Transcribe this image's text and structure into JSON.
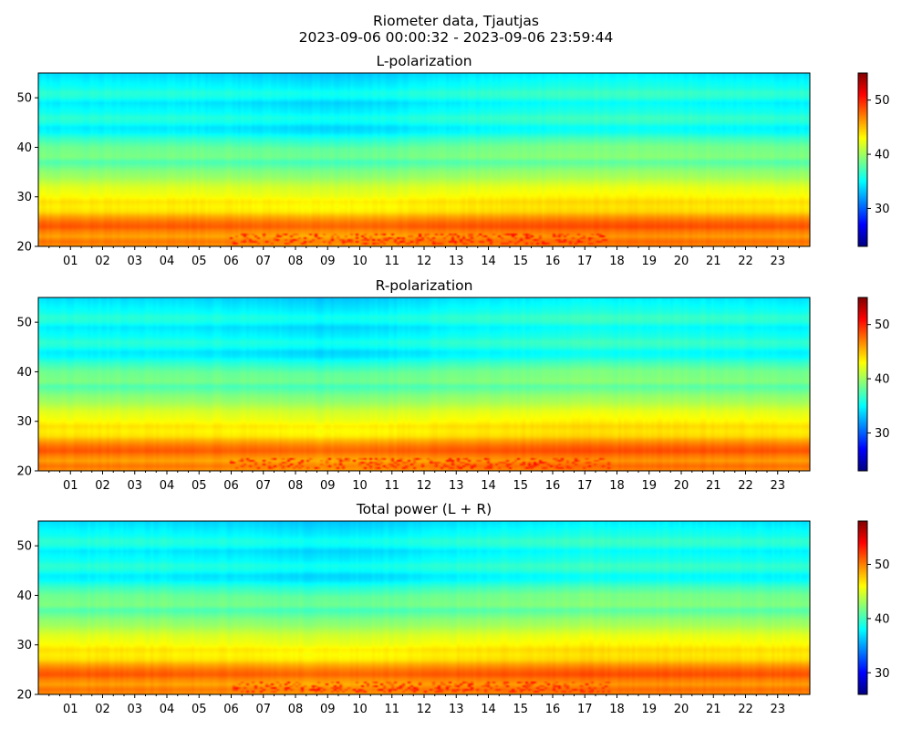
{
  "figure": {
    "title_line1": "Riometer data, Tjautjas",
    "title_line2": "2023-09-06 00:00:32 - 2023-09-06 23:59:44"
  },
  "chart_data": [
    {
      "type": "heatmap",
      "title": "L-polarization",
      "x_unit": "hour of day",
      "xlim": [
        0,
        24
      ],
      "xticks": [
        "01",
        "02",
        "03",
        "04",
        "05",
        "06",
        "07",
        "08",
        "09",
        "10",
        "11",
        "12",
        "13",
        "14",
        "15",
        "16",
        "17",
        "18",
        "19",
        "20",
        "21",
        "22",
        "23"
      ],
      "ylim": [
        20,
        55
      ],
      "yticks": [
        20,
        30,
        40,
        50
      ],
      "colormap": "jet",
      "colorbar": {
        "range": [
          23,
          55
        ],
        "ticks": [
          30,
          40,
          50
        ]
      },
      "y_profile": [
        {
          "y": 20,
          "v": 46.5
        },
        {
          "y": 21,
          "v": 47.5
        },
        {
          "y": 22,
          "v": 46.0
        },
        {
          "y": 23,
          "v": 47.0
        },
        {
          "y": 24,
          "v": 48.5
        },
        {
          "y": 25,
          "v": 47.5
        },
        {
          "y": 26,
          "v": 46.0
        },
        {
          "y": 27,
          "v": 44.0
        },
        {
          "y": 28,
          "v": 43.5
        },
        {
          "y": 29,
          "v": 44.0
        },
        {
          "y": 30,
          "v": 43.0
        },
        {
          "y": 32,
          "v": 42.0
        },
        {
          "y": 34,
          "v": 40.0
        },
        {
          "y": 35,
          "v": 39.5
        },
        {
          "y": 36,
          "v": 38.5
        },
        {
          "y": 37,
          "v": 37.5
        },
        {
          "y": 38,
          "v": 39.0
        },
        {
          "y": 40,
          "v": 38.5
        },
        {
          "y": 41,
          "v": 37.5
        },
        {
          "y": 42,
          "v": 36.5
        },
        {
          "y": 43,
          "v": 35.0
        },
        {
          "y": 44,
          "v": 34.5
        },
        {
          "y": 45,
          "v": 36.0
        },
        {
          "y": 46,
          "v": 36.5
        },
        {
          "y": 47,
          "v": 35.5
        },
        {
          "y": 48,
          "v": 35.0
        },
        {
          "y": 49,
          "v": 34.5
        },
        {
          "y": 50,
          "v": 36.0
        },
        {
          "y": 51,
          "v": 36.5
        },
        {
          "y": 52,
          "v": 35.5
        },
        {
          "y": 53,
          "v": 35.0
        },
        {
          "y": 54,
          "v": 34.5
        },
        {
          "y": 55,
          "v": 34.0
        }
      ],
      "hour_modulation": [
        {
          "h": 0,
          "d": 0.0
        },
        {
          "h": 4,
          "d": -0.2
        },
        {
          "h": 7,
          "d": -0.6
        },
        {
          "h": 9,
          "d": -1.0
        },
        {
          "h": 11,
          "d": -0.6
        },
        {
          "h": 13,
          "d": 0.0
        },
        {
          "h": 15,
          "d": 0.3
        },
        {
          "h": 17,
          "d": 0.6
        },
        {
          "h": 19,
          "d": 0.5
        },
        {
          "h": 21,
          "d": 0.3
        },
        {
          "h": 24,
          "d": 0.0
        }
      ],
      "disturbance": {
        "y_range": [
          20.5,
          22.5
        ],
        "hours": [
          6.0,
          17.8
        ],
        "peak": 51
      }
    },
    {
      "type": "heatmap",
      "title": "R-polarization",
      "x_unit": "hour of day",
      "xlim": [
        0,
        24
      ],
      "xticks": [
        "01",
        "02",
        "03",
        "04",
        "05",
        "06",
        "07",
        "08",
        "09",
        "10",
        "11",
        "12",
        "13",
        "14",
        "15",
        "16",
        "17",
        "18",
        "19",
        "20",
        "21",
        "22",
        "23"
      ],
      "ylim": [
        20,
        55
      ],
      "yticks": [
        20,
        30,
        40,
        50
      ],
      "colormap": "jet",
      "colorbar": {
        "range": [
          23,
          55
        ],
        "ticks": [
          30,
          40,
          50
        ]
      },
      "y_profile": [
        {
          "y": 20,
          "v": 46.5
        },
        {
          "y": 21,
          "v": 47.5
        },
        {
          "y": 22,
          "v": 46.0
        },
        {
          "y": 23,
          "v": 47.0
        },
        {
          "y": 24,
          "v": 48.5
        },
        {
          "y": 25,
          "v": 47.5
        },
        {
          "y": 26,
          "v": 46.0
        },
        {
          "y": 27,
          "v": 44.0
        },
        {
          "y": 28,
          "v": 43.5
        },
        {
          "y": 29,
          "v": 44.0
        },
        {
          "y": 30,
          "v": 43.0
        },
        {
          "y": 32,
          "v": 42.0
        },
        {
          "y": 34,
          "v": 40.0
        },
        {
          "y": 35,
          "v": 39.5
        },
        {
          "y": 36,
          "v": 38.5
        },
        {
          "y": 37,
          "v": 37.5
        },
        {
          "y": 38,
          "v": 39.0
        },
        {
          "y": 40,
          "v": 38.5
        },
        {
          "y": 41,
          "v": 37.5
        },
        {
          "y": 42,
          "v": 36.5
        },
        {
          "y": 43,
          "v": 35.0
        },
        {
          "y": 44,
          "v": 34.5
        },
        {
          "y": 45,
          "v": 36.0
        },
        {
          "y": 46,
          "v": 36.5
        },
        {
          "y": 47,
          "v": 35.5
        },
        {
          "y": 48,
          "v": 35.0
        },
        {
          "y": 49,
          "v": 34.5
        },
        {
          "y": 50,
          "v": 36.0
        },
        {
          "y": 51,
          "v": 36.5
        },
        {
          "y": 52,
          "v": 35.5
        },
        {
          "y": 53,
          "v": 35.0
        },
        {
          "y": 54,
          "v": 34.5
        },
        {
          "y": 55,
          "v": 34.0
        }
      ],
      "hour_modulation": [
        {
          "h": 0,
          "d": 0.0
        },
        {
          "h": 4,
          "d": -0.2
        },
        {
          "h": 7,
          "d": -0.6
        },
        {
          "h": 9,
          "d": -1.0
        },
        {
          "h": 11,
          "d": -0.6
        },
        {
          "h": 13,
          "d": 0.0
        },
        {
          "h": 15,
          "d": 0.3
        },
        {
          "h": 17,
          "d": 0.6
        },
        {
          "h": 19,
          "d": 0.5
        },
        {
          "h": 21,
          "d": 0.3
        },
        {
          "h": 24,
          "d": 0.0
        }
      ],
      "disturbance": {
        "y_range": [
          20.5,
          22.5
        ],
        "hours": [
          6.0,
          17.8
        ],
        "peak": 51
      }
    },
    {
      "type": "heatmap",
      "title": "Total power (L + R)",
      "x_unit": "hour of day",
      "xlim": [
        0,
        24
      ],
      "xticks": [
        "01",
        "02",
        "03",
        "04",
        "05",
        "06",
        "07",
        "08",
        "09",
        "10",
        "11",
        "12",
        "13",
        "14",
        "15",
        "16",
        "17",
        "18",
        "19",
        "20",
        "21",
        "22",
        "23"
      ],
      "ylim": [
        20,
        55
      ],
      "yticks": [
        20,
        30,
        40,
        50
      ],
      "colormap": "jet",
      "colorbar": {
        "range": [
          26,
          58
        ],
        "ticks": [
          30,
          40,
          50
        ]
      },
      "y_profile": [
        {
          "y": 20,
          "v": 49.5
        },
        {
          "y": 21,
          "v": 50.5
        },
        {
          "y": 22,
          "v": 49.0
        },
        {
          "y": 23,
          "v": 50.0
        },
        {
          "y": 24,
          "v": 51.5
        },
        {
          "y": 25,
          "v": 50.5
        },
        {
          "y": 26,
          "v": 49.0
        },
        {
          "y": 27,
          "v": 47.0
        },
        {
          "y": 28,
          "v": 46.5
        },
        {
          "y": 29,
          "v": 47.0
        },
        {
          "y": 30,
          "v": 46.0
        },
        {
          "y": 32,
          "v": 45.0
        },
        {
          "y": 34,
          "v": 43.0
        },
        {
          "y": 35,
          "v": 42.5
        },
        {
          "y": 36,
          "v": 41.5
        },
        {
          "y": 37,
          "v": 40.5
        },
        {
          "y": 38,
          "v": 42.0
        },
        {
          "y": 40,
          "v": 41.5
        },
        {
          "y": 41,
          "v": 40.5
        },
        {
          "y": 42,
          "v": 39.5
        },
        {
          "y": 43,
          "v": 38.0
        },
        {
          "y": 44,
          "v": 37.5
        },
        {
          "y": 45,
          "v": 39.0
        },
        {
          "y": 46,
          "v": 39.5
        },
        {
          "y": 47,
          "v": 38.5
        },
        {
          "y": 48,
          "v": 38.0
        },
        {
          "y": 49,
          "v": 37.5
        },
        {
          "y": 50,
          "v": 39.0
        },
        {
          "y": 51,
          "v": 39.5
        },
        {
          "y": 52,
          "v": 38.5
        },
        {
          "y": 53,
          "v": 38.0
        },
        {
          "y": 54,
          "v": 37.5
        },
        {
          "y": 55,
          "v": 37.0
        }
      ],
      "hour_modulation": [
        {
          "h": 0,
          "d": 0.0
        },
        {
          "h": 4,
          "d": -0.2
        },
        {
          "h": 7,
          "d": -0.6
        },
        {
          "h": 9,
          "d": -1.0
        },
        {
          "h": 11,
          "d": -0.6
        },
        {
          "h": 13,
          "d": 0.0
        },
        {
          "h": 15,
          "d": 0.3
        },
        {
          "h": 17,
          "d": 0.6
        },
        {
          "h": 19,
          "d": 0.5
        },
        {
          "h": 21,
          "d": 0.3
        },
        {
          "h": 24,
          "d": 0.0
        }
      ],
      "disturbance": {
        "y_range": [
          20.5,
          22.5
        ],
        "hours": [
          6.0,
          17.8
        ],
        "peak": 54
      }
    }
  ]
}
